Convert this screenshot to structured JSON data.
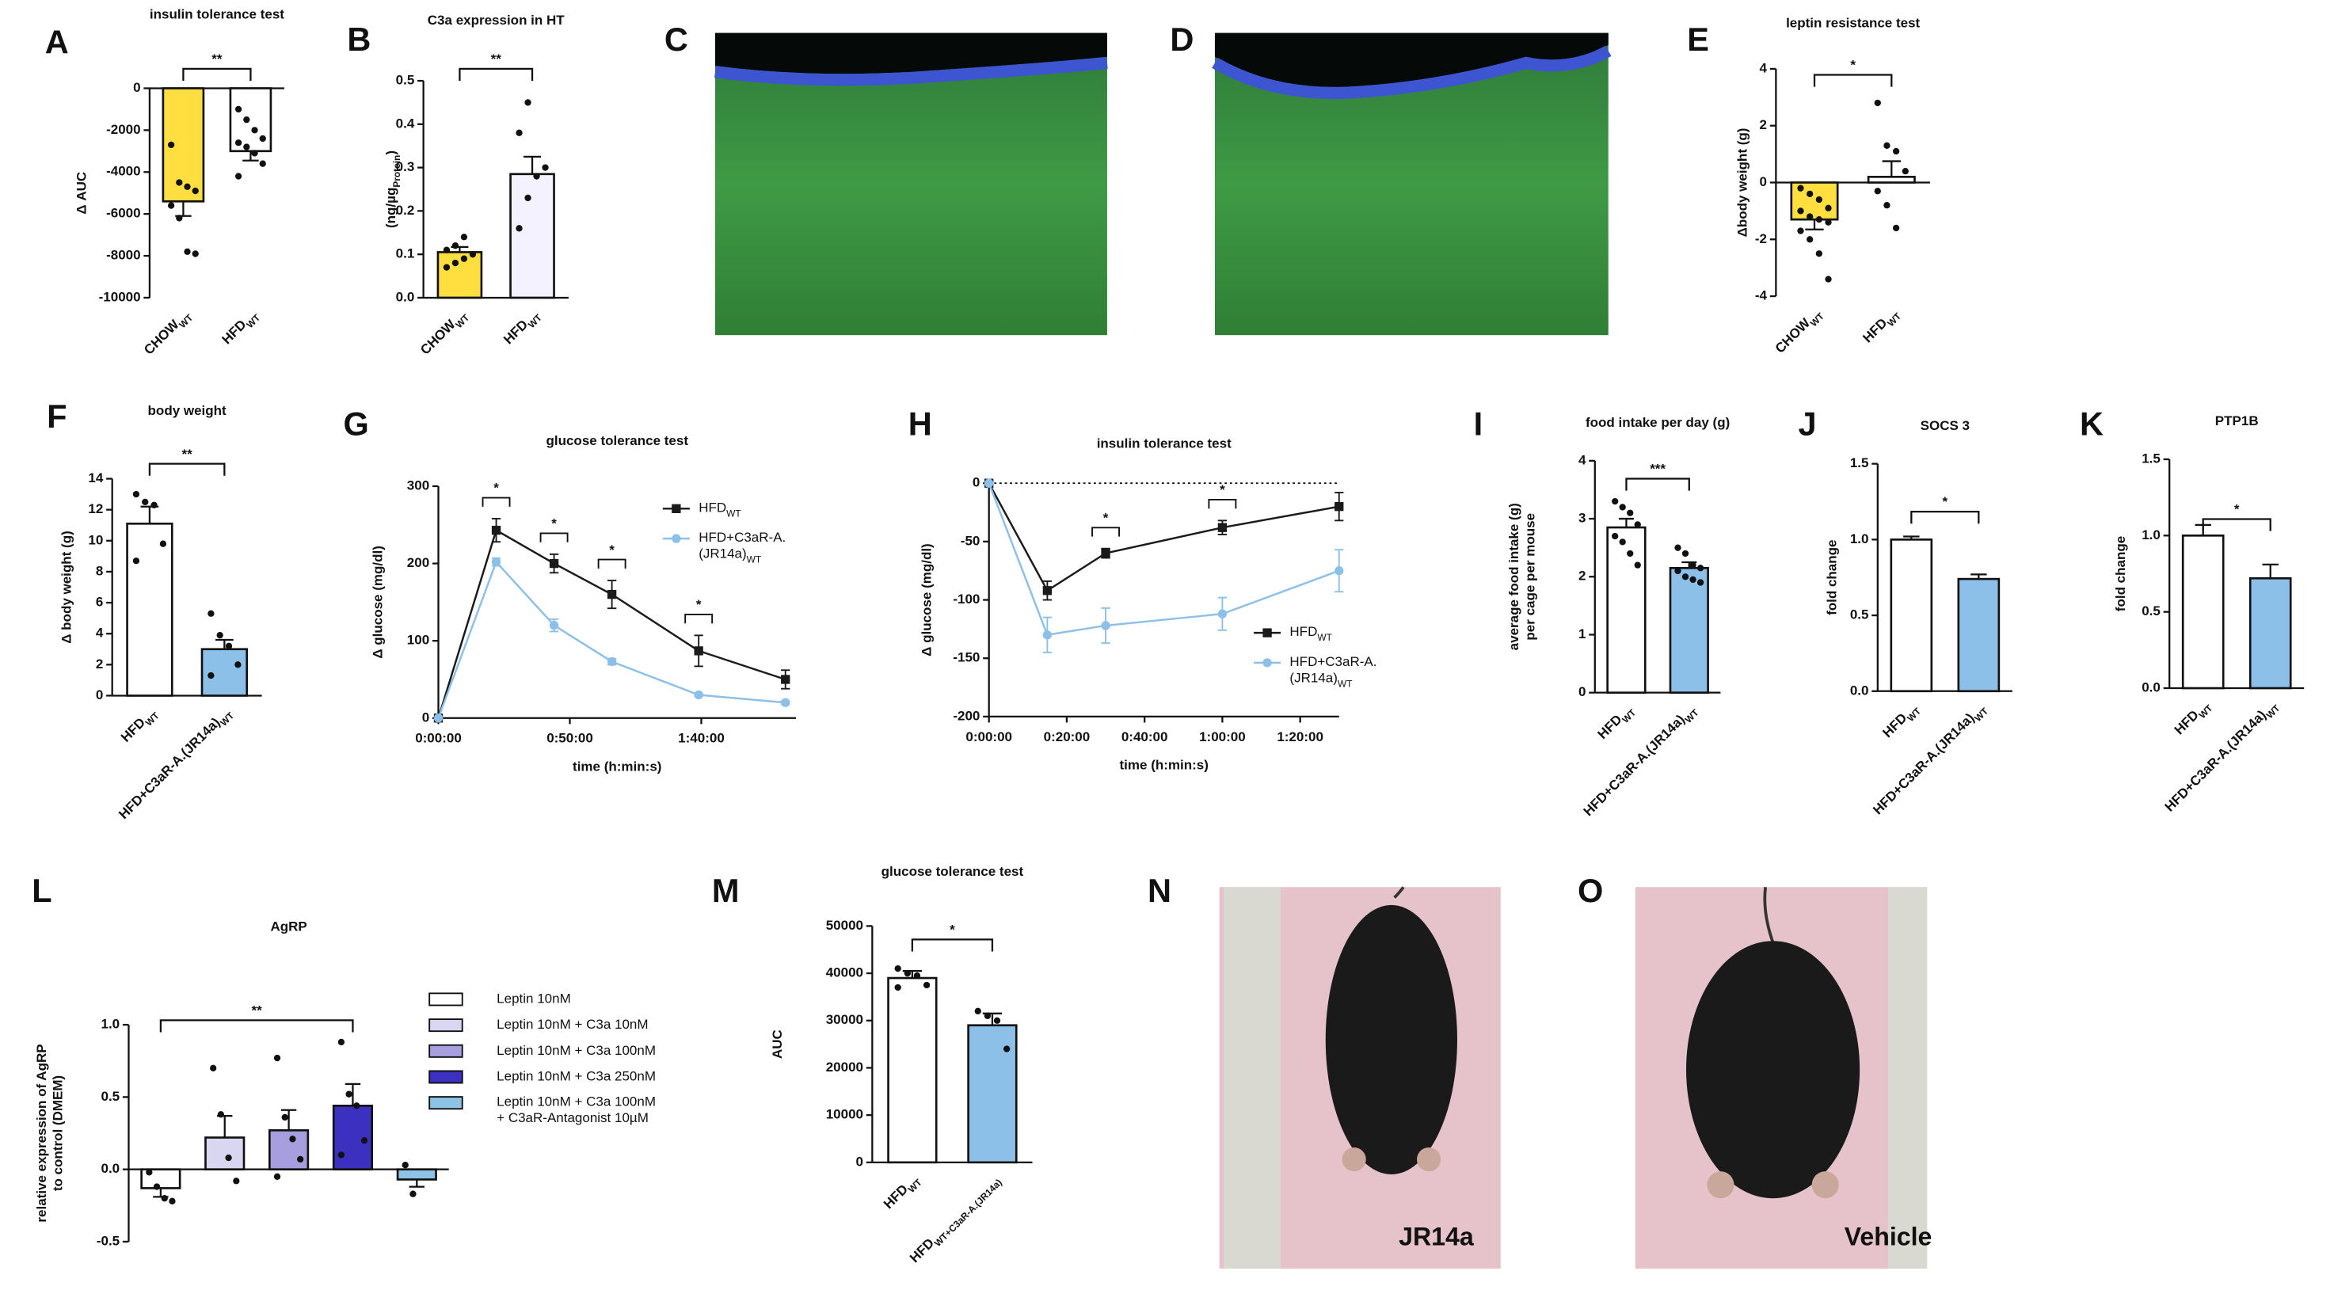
{
  "chart_data": [
    {
      "panel": "A",
      "type": "bar",
      "title": "insulin tolerance test",
      "ylabel": "Δ AUC",
      "categories": [
        [
          {
            "t": "CHOW"
          },
          {
            "sub": "WT"
          }
        ],
        [
          {
            "t": "HFD"
          },
          {
            "sub": "WT"
          }
        ]
      ],
      "values": [
        -5400,
        -3000
      ],
      "errors": [
        700,
        450
      ],
      "colors": [
        "#ffdf3f",
        "#ffffff"
      ],
      "points": [
        [
          -2700,
          -4500,
          -4700,
          -4900,
          -5600,
          -6200,
          -7800,
          -7900
        ],
        [
          -1000,
          -1500,
          -2000,
          -2400,
          -2600,
          -2800,
          -3100,
          -3600,
          -4200
        ]
      ],
      "ylim": [
        -10000,
        0
      ],
      "yticks": [
        0,
        -2000,
        -4000,
        -6000,
        -8000,
        -10000
      ],
      "significance": {
        "label": "**",
        "pair": [
          0,
          1
        ]
      }
    },
    {
      "panel": "B",
      "type": "bar",
      "title": "C3a expression in HT",
      "ylabel": [
        {
          "t": "(ng/µg"
        },
        {
          "sub": "Protein"
        },
        {
          "t": ")"
        }
      ],
      "categories": [
        [
          {
            "t": "CHOW"
          },
          {
            "sub": "WT"
          }
        ],
        [
          {
            "t": "HFD"
          },
          {
            "sub": "WT"
          }
        ]
      ],
      "values": [
        0.105,
        0.285
      ],
      "errors": [
        0.012,
        0.04
      ],
      "colors": [
        "#ffdf3f",
        "#f4f2ff"
      ],
      "points": [
        [
          0.07,
          0.08,
          0.09,
          0.1,
          0.11,
          0.12,
          0.14
        ],
        [
          0.16,
          0.23,
          0.28,
          0.3,
          0.38,
          0.45
        ]
      ],
      "ylim": [
        0,
        0.5
      ],
      "yticks": [
        {
          "value": 0,
          "label": "0.0"
        },
        0.1,
        0.2,
        0.3,
        0.4,
        0.5
      ],
      "significance": {
        "label": "**",
        "pair": [
          0,
          1
        ]
      }
    },
    {
      "panel": "E",
      "type": "bar",
      "title": "leptin resistance test",
      "ylabel": "Δbody weight (g)",
      "categories": [
        [
          {
            "t": "CHOW"
          },
          {
            "sub": "WT"
          }
        ],
        [
          {
            "t": "HFD"
          },
          {
            "sub": "WT"
          }
        ]
      ],
      "values": [
        -1.3,
        0.2
      ],
      "errors": [
        0.35,
        0.55
      ],
      "colors": [
        "#ffdf3f",
        "#ffffff"
      ],
      "points": [
        [
          -0.2,
          -0.4,
          -0.6,
          -0.9,
          -1.0,
          -1.2,
          -1.3,
          -1.4,
          -1.7,
          -2.0,
          -2.5,
          -3.4
        ],
        [
          2.8,
          1.3,
          1.1,
          0.4,
          -0.3,
          -0.8,
          -1.6
        ]
      ],
      "ylim": [
        -4,
        4
      ],
      "yticks": [
        4,
        2,
        0,
        -2,
        -4
      ],
      "significance": {
        "label": "*",
        "pair": [
          0,
          1
        ]
      }
    },
    {
      "panel": "F",
      "type": "bar",
      "title": "body weight",
      "ylabel": "Δ body weight (g)",
      "categories": [
        [
          {
            "t": "HFD"
          },
          {
            "sub": "WT"
          }
        ],
        [
          {
            "t": "HFD+C3aR-A.(JR14a)"
          },
          {
            "sub": "WT"
          }
        ]
      ],
      "values": [
        11.1,
        3.0
      ],
      "errors": [
        1.1,
        0.6
      ],
      "colors": [
        "#ffffff",
        "#8dc0e8"
      ],
      "points": [
        [
          13.0,
          12.5,
          12.3,
          9.8,
          8.7
        ],
        [
          5.3,
          3.9,
          3.2,
          2.0,
          1.3
        ]
      ],
      "ylim": [
        0,
        14
      ],
      "yticks": [
        0,
        2,
        4,
        6,
        8,
        10,
        12,
        14
      ],
      "significance": {
        "label": "**",
        "pair": [
          0,
          1
        ]
      }
    },
    {
      "panel": "G",
      "type": "line",
      "title": "glucose tolerance test",
      "ylabel": "Δ glucose (mg/dl)",
      "xlabel": "time (h:min:s)",
      "x": [
        0,
        22,
        44,
        66,
        99,
        132
      ],
      "xlim": [
        0,
        136
      ],
      "xticks": [
        {
          "value": 0,
          "label": "0:00:00"
        },
        {
          "value": 50,
          "label": "0:50:00"
        },
        {
          "value": 100,
          "label": "1:40:00"
        }
      ],
      "ylim": [
        0,
        300
      ],
      "yticks": [
        0,
        100,
        200,
        300
      ],
      "series": [
        {
          "name": [
            {
              "t": "HFD"
            },
            {
              "sub": "WT"
            }
          ],
          "color": "#1a1a1a",
          "marker": "square",
          "values": [
            0,
            243,
            200,
            160,
            87,
            50
          ],
          "errors": [
            0,
            15,
            12,
            18,
            20,
            12
          ]
        },
        {
          "name": [
            "HFD+C3aR-A.",
            [
              {
                "t": "(JR14a)"
              },
              {
                "sub": "WT"
              }
            ]
          ],
          "color": "#8dc0e8",
          "marker": "circle",
          "values": [
            0,
            202,
            120,
            73,
            30,
            20
          ],
          "errors": [
            0,
            5,
            8,
            4,
            2,
            2
          ]
        }
      ],
      "annotations": [
        {
          "text": "*",
          "at": 1
        },
        {
          "text": "*",
          "at": 2
        },
        {
          "text": "*",
          "at": 3
        },
        {
          "text": "*",
          "at": 4
        }
      ]
    },
    {
      "panel": "H",
      "type": "line",
      "title": "insulin tolerance test",
      "ylabel": "Δ glucose (mg/dl)",
      "xlabel": "time (h:min:s)",
      "x": [
        0,
        15,
        30,
        60,
        90
      ],
      "xlim": [
        0,
        90
      ],
      "xticks": [
        {
          "value": 0,
          "label": "0:00:00"
        },
        {
          "value": 20,
          "label": "0:20:00"
        },
        {
          "value": 40,
          "label": "0:40:00"
        },
        {
          "value": 60,
          "label": "1:00:00"
        },
        {
          "value": 80,
          "label": "1:20:00"
        }
      ],
      "ylim": [
        -200,
        0
      ],
      "yticks": [
        0,
        -50,
        -100,
        -150,
        -200
      ],
      "hline": 0,
      "series": [
        {
          "name": [
            {
              "t": "HFD"
            },
            {
              "sub": "WT"
            }
          ],
          "color": "#1a1a1a",
          "marker": "square",
          "values": [
            0,
            -92,
            -60,
            -38,
            -20
          ],
          "errors": [
            0,
            8,
            4,
            6,
            12
          ]
        },
        {
          "name": [
            "HFD+C3aR-A.",
            [
              {
                "t": "(JR14a)"
              },
              {
                "sub": "WT"
              }
            ]
          ],
          "color": "#8dc0e8",
          "marker": "circle",
          "values": [
            0,
            -130,
            -122,
            -112,
            -75
          ],
          "errors": [
            0,
            15,
            15,
            14,
            18
          ]
        }
      ],
      "annotations": [
        {
          "text": "*",
          "at": 2
        },
        {
          "text": "*",
          "at": 3
        }
      ]
    },
    {
      "panel": "I",
      "type": "bar",
      "title": "food intake per day (g)",
      "ylabel": [
        "average food intake (g)",
        "per cage per mouse"
      ],
      "categories": [
        [
          {
            "t": "HFD"
          },
          {
            "sub": "WT"
          }
        ],
        [
          {
            "t": "HFD+C3aR-A.(JR14a)"
          },
          {
            "sub": "WT"
          }
        ]
      ],
      "values": [
        2.85,
        2.15
      ],
      "errors": [
        0.15,
        0.1
      ],
      "colors": [
        "#ffffff",
        "#8dc0e8"
      ],
      "points": [
        [
          3.3,
          3.2,
          3.1,
          2.9,
          2.7,
          2.6,
          2.4,
          2.2
        ],
        [
          2.5,
          2.4,
          2.2,
          2.15,
          2.1,
          2.0,
          1.95,
          1.9
        ]
      ],
      "ylim": [
        0,
        4
      ],
      "yticks": [
        0,
        1,
        2,
        3,
        4
      ],
      "significance": {
        "label": "***",
        "pair": [
          0,
          1
        ]
      }
    },
    {
      "panel": "J",
      "type": "bar",
      "title": "SOCS 3",
      "ylabel": "fold change",
      "categories": [
        [
          {
            "t": "HFD"
          },
          {
            "sub": "WT"
          }
        ],
        [
          {
            "t": "HFD+C3aR-A.(JR14a)"
          },
          {
            "sub": "WT"
          }
        ]
      ],
      "values": [
        1.0,
        0.74
      ],
      "errors": [
        0.02,
        0.03
      ],
      "colors": [
        "#ffffff",
        "#8dc0e8"
      ],
      "ylim": [
        0,
        1.5
      ],
      "yticks": [
        {
          "value": 0,
          "label": "0.0"
        },
        0.5,
        {
          "value": 1,
          "label": "1.0"
        },
        1.5
      ],
      "significance": {
        "label": "*",
        "pair": [
          0,
          1
        ]
      }
    },
    {
      "panel": "K",
      "type": "bar",
      "title": "PTP1B",
      "ylabel": "fold change",
      "categories": [
        [
          {
            "t": "HFD"
          },
          {
            "sub": "WT"
          }
        ],
        [
          {
            "t": "HFD+C3aR-A.(JR14a)"
          },
          {
            "sub": "WT"
          }
        ]
      ],
      "values": [
        1.0,
        0.72
      ],
      "errors": [
        0.07,
        0.09
      ],
      "colors": [
        "#ffffff",
        "#8dc0e8"
      ],
      "ylim": [
        0,
        1.5
      ],
      "yticks": [
        {
          "value": 0,
          "label": "0.0"
        },
        0.5,
        {
          "value": 1,
          "label": "1.0"
        },
        1.5
      ],
      "significance": {
        "label": "*",
        "pair": [
          0,
          1
        ]
      }
    },
    {
      "panel": "L",
      "type": "bar",
      "title": "AgRP",
      "ylabel": [
        "relative expression of AgRP",
        "to control (DMEM)"
      ],
      "legend": "right",
      "categories": [
        "Leptin 10nM",
        "Leptin 10nM + C3a 10nM",
        "Leptin 10nM + C3a 100nM",
        "Leptin 10nM + C3a 250nM",
        [
          "Leptin 10nM + C3a 100nM",
          "+ C3aR-Antagonist 10µM"
        ]
      ],
      "values": [
        -0.13,
        0.22,
        0.27,
        0.44,
        -0.07
      ],
      "errors": [
        0.06,
        0.15,
        0.14,
        0.15,
        0.05
      ],
      "colors": [
        "#ffffff",
        "#d9d6f2",
        "#a79ee0",
        "#3b30c0",
        "#8ec3e6"
      ],
      "points": [
        [
          -0.02,
          -0.12,
          -0.2,
          -0.22
        ],
        [
          0.7,
          0.38,
          0.08,
          -0.08
        ],
        [
          0.77,
          0.36,
          0.21,
          0.07,
          -0.05
        ],
        [
          0.88,
          0.52,
          0.44,
          0.2,
          0.1
        ],
        [
          0.03,
          -0.17
        ]
      ],
      "ylim": [
        -0.5,
        1.0
      ],
      "yticks": [
        -0.5,
        {
          "value": 0,
          "label": "0.0"
        },
        0.5,
        {
          "value": 1,
          "label": "1.0"
        }
      ],
      "significance": {
        "label": "**",
        "pair": [
          0,
          3
        ]
      }
    },
    {
      "panel": "M",
      "type": "bar",
      "title": "glucose tolerance test",
      "ylabel": "AUC",
      "categories": [
        [
          {
            "t": "HFD"
          },
          {
            "sub": "WT"
          }
        ],
        [
          {
            "t": "HFD"
          },
          {
            "sub": "WT+C3aR-A.(JR14a)"
          }
        ]
      ],
      "values": [
        39000,
        29000
      ],
      "errors": [
        1500,
        2500
      ],
      "colors": [
        "#ffffff",
        "#8dc0e8"
      ],
      "points": [
        [
          41000,
          40000,
          39500,
          37500,
          37000
        ],
        [
          32000,
          31000,
          30000,
          24000
        ]
      ],
      "ylim": [
        0,
        50000
      ],
      "yticks": [
        0,
        10000,
        20000,
        30000,
        40000,
        50000
      ],
      "significance": {
        "label": "*",
        "pair": [
          0,
          1
        ]
      }
    }
  ],
  "images": [
    {
      "panel": "C"
    },
    {
      "panel": "D"
    },
    {
      "panel": "N",
      "label": "JR14a"
    },
    {
      "panel": "O",
      "label": "Vehicle"
    }
  ]
}
